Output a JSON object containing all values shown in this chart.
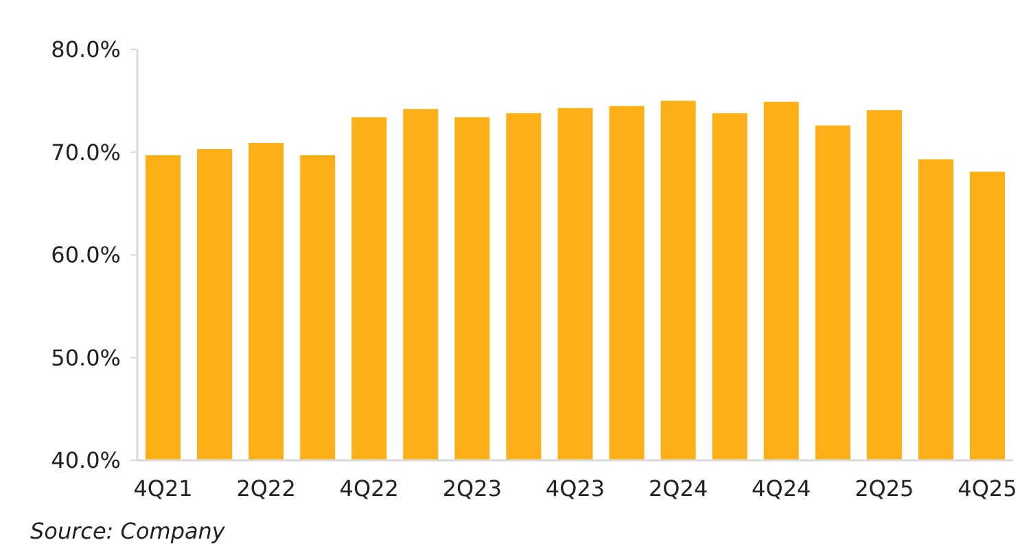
{
  "chart_data": [
    {
      "type": "bar",
      "categories": [
        "4Q21",
        null,
        "2Q22",
        null,
        "4Q22",
        null,
        "2Q23",
        null,
        "4Q23",
        null,
        "2Q24",
        null,
        "4Q24",
        null,
        "2Q25",
        null,
        "4Q25"
      ],
      "values": [
        69.7,
        70.3,
        70.9,
        69.7,
        73.4,
        74.2,
        73.4,
        73.8,
        74.3,
        74.5,
        75.0,
        73.8,
        74.9,
        72.6,
        74.1,
        69.3,
        68.1
      ],
      "color": "#fcaf17",
      "ylim": [
        40,
        80
      ],
      "yticks": [
        {
          "value": 40,
          "label": "40.0%"
        },
        {
          "value": 50,
          "label": "50.0%"
        },
        {
          "value": 60,
          "label": "60.0%"
        },
        {
          "value": 70,
          "label": "70.0%"
        },
        {
          "value": 80,
          "label": "80.0%"
        }
      ],
      "grid": false,
      "annotations": [
        "Source: Company"
      ]
    }
  ]
}
